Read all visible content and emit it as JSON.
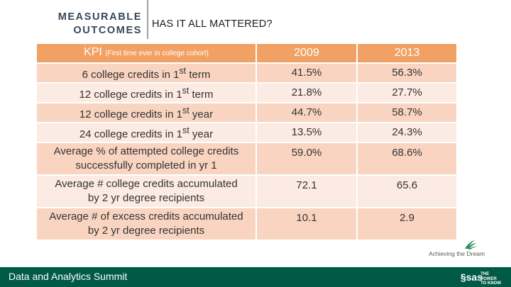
{
  "header": {
    "left_line1": "MEASURABLE",
    "left_line2": "OUTCOMES",
    "title": "HAS IT ALL MATTERED?"
  },
  "table": {
    "col_kpi": "KPI",
    "col_kpi_sub": "(First time ever in college cohort)",
    "col_2009": "2009",
    "col_2013": "2013",
    "rows": [
      {
        "pre": "6 college credits in 1",
        "sup": "st",
        "post": " term",
        "v2009": "41.5%",
        "v2013": "56.3%"
      },
      {
        "pre": "12 college credits in 1",
        "sup": "st",
        "post": " term",
        "v2009": "21.8%",
        "v2013": "27.7%"
      },
      {
        "pre": "12 college credits in 1",
        "sup": "st",
        "post": " year",
        "v2009": "44.7%",
        "v2013": "58.7%"
      },
      {
        "pre": "24 college credits in 1",
        "sup": "st",
        "post": " year",
        "v2009": "13.5%",
        "v2013": "24.3%"
      },
      {
        "line1": "Average % of attempted college credits",
        "line2": "successfully completed in yr 1",
        "v2009": "59.0%",
        "v2013": "68.6%"
      },
      {
        "line1": "Average # college credits accumulated",
        "line2": "by 2 yr degree recipients",
        "v2009": "72.1",
        "v2013": "65.6"
      },
      {
        "line1": "Average # of excess credits accumulated",
        "line2": "by 2 yr degree recipients",
        "v2009": "10.1",
        "v2013": "2.9"
      }
    ]
  },
  "logo": {
    "text": "Achieving the Dream",
    "color": "#2e8b57"
  },
  "footer": {
    "title": "Data and Analytics Summit",
    "brand": "sas",
    "inst_line1": "THE",
    "inst_line2": "POWER",
    "inst_line3": "TO KNOW",
    "color": "#005a46"
  }
}
